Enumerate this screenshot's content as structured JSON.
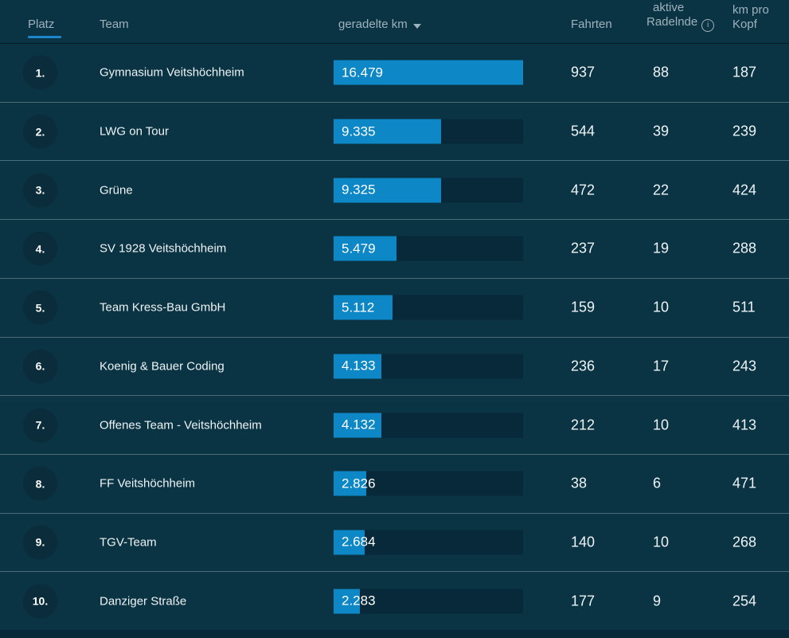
{
  "header": {
    "platz": "Platz",
    "team": "Team",
    "km": "geradelte km",
    "fahrten": "Fahrten",
    "aktive_line1": "aktive",
    "aktive_line2": "Radelnde",
    "info_symbol": "i",
    "kmkopf_line1": "km pro",
    "kmkopf_line2": "Kopf"
  },
  "max_km": 16479,
  "rows": [
    {
      "rank": "1.",
      "team": "Gymnasium Veitshöchheim",
      "km_display": "16.479",
      "km": 16479,
      "fahrten": "937",
      "aktive_radelnde": "88",
      "km_pro_kopf": "187"
    },
    {
      "rank": "2.",
      "team": "LWG on Tour",
      "km_display": "9.335",
      "km": 9335,
      "fahrten": "544",
      "aktive_radelnde": "39",
      "km_pro_kopf": "239"
    },
    {
      "rank": "3.",
      "team": "Grüne",
      "km_display": "9.325",
      "km": 9325,
      "fahrten": "472",
      "aktive_radelnde": "22",
      "km_pro_kopf": "424"
    },
    {
      "rank": "4.",
      "team": "SV 1928 Veitshöchheim",
      "km_display": "5.479",
      "km": 5479,
      "fahrten": "237",
      "aktive_radelnde": "19",
      "km_pro_kopf": "288"
    },
    {
      "rank": "5.",
      "team": "Team Kress-Bau GmbH",
      "km_display": "5.112",
      "km": 5112,
      "fahrten": "159",
      "aktive_radelnde": "10",
      "km_pro_kopf": "511"
    },
    {
      "rank": "6.",
      "team": "Koenig & Bauer Coding",
      "km_display": "4.133",
      "km": 4133,
      "fahrten": "236",
      "aktive_radelnde": "17",
      "km_pro_kopf": "243"
    },
    {
      "rank": "7.",
      "team": "Offenes Team - Veitshöchheim",
      "km_display": "4.132",
      "km": 4132,
      "fahrten": "212",
      "aktive_radelnde": "10",
      "km_pro_kopf": "413"
    },
    {
      "rank": "8.",
      "team": "FF Veitshöchheim",
      "km_display": "2.826",
      "km": 2826,
      "fahrten": "38",
      "aktive_radelnde": "6",
      "km_pro_kopf": "471"
    },
    {
      "rank": "9.",
      "team": "TGV-Team",
      "km_display": "2.684",
      "km": 2684,
      "fahrten": "140",
      "aktive_radelnde": "10",
      "km_pro_kopf": "268"
    },
    {
      "rank": "10.",
      "team": "Danziger Straße",
      "km_display": "2.283",
      "km": 2283,
      "fahrten": "177",
      "aktive_radelnde": "9",
      "km_pro_kopf": "254"
    }
  ],
  "colors": {
    "background": "#0a3444",
    "bar_fill": "#0d87c5",
    "bar_track": "#072939",
    "badge": "#0a2c3b",
    "header_text": "#9fb2bc",
    "sort_underline": "#1b86c9",
    "text": "#eef3f5"
  }
}
